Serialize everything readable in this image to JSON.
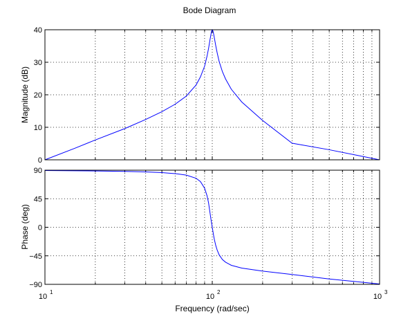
{
  "chart_data": {
    "type": "line",
    "title": "Bode Diagram",
    "xlabel": "Frequency  (rad/sec)",
    "xscale": "log",
    "xlim": [
      10,
      1000
    ],
    "x_ticks": [
      {
        "value": 10,
        "base": "10",
        "exp": "1"
      },
      {
        "value": 100,
        "base": "10",
        "exp": "2"
      },
      {
        "value": 1000,
        "base": "10",
        "exp": "3"
      }
    ],
    "grid": true,
    "line_color": "#0000ff",
    "subplots": [
      {
        "ylabel": "Magnitude (dB)",
        "ylim": [
          0,
          40
        ],
        "y_ticks": [
          0,
          10,
          20,
          30,
          40
        ],
        "series": [
          {
            "x": [
              10,
              15,
              20,
              30,
              40,
              50,
              60,
              70,
              80,
              85,
              90,
              93,
              95,
              97,
              98,
              99,
              100,
              101,
              102,
              103,
              105,
              107,
              110,
              115,
              120,
              130,
              150,
              200,
              300,
              500,
              700,
              1000
            ],
            "values": [
              0.0,
              3.5,
              6.1,
              9.6,
              12.4,
              14.8,
              17.1,
              19.6,
              23.0,
              25.5,
              28.8,
              31.8,
              34.2,
              37.0,
              38.3,
              39.5,
              40.0,
              39.6,
              38.6,
              37.4,
              35.0,
              32.9,
              30.2,
              27.1,
              24.9,
              21.7,
              17.8,
              12.1,
              5.1,
              3.1,
              1.6,
              0.0
            ]
          }
        ]
      },
      {
        "ylabel": "Phase (deg)",
        "ylim": [
          -90,
          90
        ],
        "y_ticks": [
          {
            "value": 90,
            "label": "90"
          },
          {
            "value": 45,
            "label": "45"
          },
          {
            "value": 0,
            "label": "0"
          },
          {
            "value": -45,
            "label": "−45"
          },
          {
            "value": -90,
            "label": "−90"
          }
        ],
        "series": [
          {
            "x": [
              10,
              20,
              30,
              40,
              50,
              60,
              70,
              80,
              85,
              90,
              93,
              95,
              97,
              98,
              99,
              100,
              101,
              102,
              103,
              105,
              107,
              110,
              115,
              120,
              130,
              150,
              200,
              300,
              500,
              1000
            ],
            "values": [
              89.4,
              88.8,
              88.1,
              87.3,
              86.2,
              84.6,
              82.2,
              77.3,
              72.0,
              61.5,
              50.0,
              38.7,
              22.4,
              14.2,
              7.2,
              0.0,
              -7.0,
              -13.7,
              -19.6,
              -29.0,
              -36.0,
              -43.6,
              -50.9,
              -55.0,
              -60.0,
              -64.4,
              -69.1,
              -74.4,
              -81.5,
              -89.4
            ]
          }
        ]
      }
    ]
  }
}
